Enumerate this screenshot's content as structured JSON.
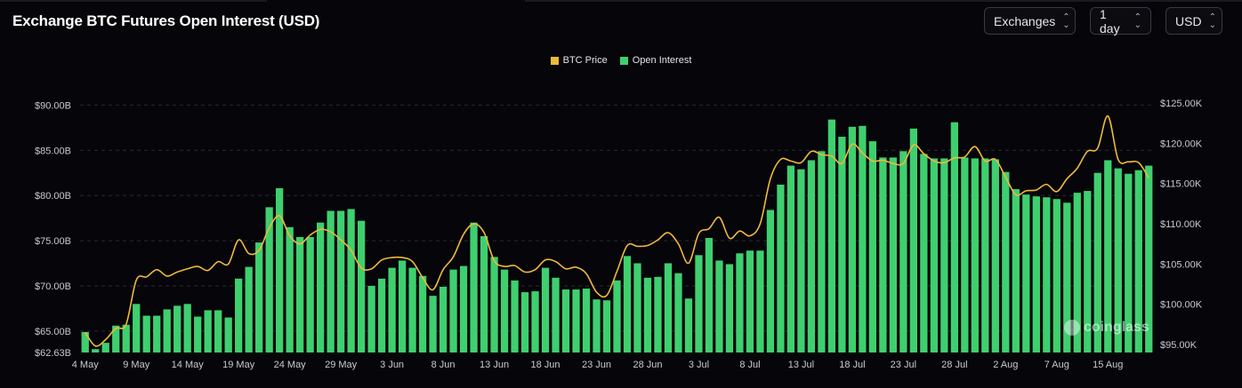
{
  "header": {
    "title": "Exchange BTC Futures Open Interest (USD)",
    "controls": [
      {
        "label": "Exchanges",
        "icon": "chevron-updown-icon"
      },
      {
        "label": "1 day",
        "icon": "chevron-updown-icon"
      },
      {
        "label": "USD",
        "icon": "chevron-updown-icon"
      }
    ]
  },
  "watermark": "coinglass",
  "colors": {
    "bar": "#3fcf6f",
    "line": "#f0b93a",
    "grid": "#2a2a33",
    "background": "#05050a"
  },
  "chart_data": {
    "type": "bar",
    "title": "Exchange BTC Futures Open Interest (USD)",
    "legend": [
      {
        "name": "BTC Price",
        "color": "#f0b93a",
        "kind": "line"
      },
      {
        "name": "Open Interest",
        "color": "#3fcf6f",
        "kind": "bar"
      }
    ],
    "legend_position": "top-center",
    "grid": true,
    "left_axis": {
      "ylim": [
        62.63,
        92.0
      ],
      "ticks": [
        62.63,
        65,
        70,
        75,
        80,
        85,
        90
      ],
      "tick_labels": [
        "$62.63B",
        "$65.00B",
        "$70.00B",
        "$75.00B",
        "$80.00B",
        "$85.00B",
        "$90.00B"
      ]
    },
    "right_axis": {
      "ylim": [
        94000,
        127000
      ],
      "ticks": [
        95000,
        100000,
        105000,
        110000,
        115000,
        120000,
        125000
      ],
      "tick_labels": [
        "$95.00K",
        "$100.00K",
        "$105.00K",
        "$110.00K",
        "$115.00K",
        "$120.00K",
        "$125.00K"
      ]
    },
    "x_tick_labels": [
      {
        "index": 0,
        "label": "4 May"
      },
      {
        "index": 5,
        "label": "9 May"
      },
      {
        "index": 10,
        "label": "14 May"
      },
      {
        "index": 15,
        "label": "19 May"
      },
      {
        "index": 20,
        "label": "24 May"
      },
      {
        "index": 25,
        "label": "29 May"
      },
      {
        "index": 30,
        "label": "3 Jun"
      },
      {
        "index": 35,
        "label": "8 Jun"
      },
      {
        "index": 40,
        "label": "13 Jun"
      },
      {
        "index": 45,
        "label": "18 Jun"
      },
      {
        "index": 50,
        "label": "23 Jun"
      },
      {
        "index": 55,
        "label": "28 Jun"
      },
      {
        "index": 60,
        "label": "3 Jul"
      },
      {
        "index": 65,
        "label": "8 Jul"
      },
      {
        "index": 70,
        "label": "13 Jul"
      },
      {
        "index": 75,
        "label": "18 Jul"
      },
      {
        "index": 80,
        "label": "23 Jul"
      },
      {
        "index": 85,
        "label": "28 Jul"
      },
      {
        "index": 90,
        "label": "2 Aug"
      },
      {
        "index": 95,
        "label": "7 Aug"
      },
      {
        "index": 100,
        "label": "15 Aug"
      }
    ],
    "series": [
      {
        "name": "Open Interest",
        "unit": "B USD",
        "axis": "left",
        "values": [
          64.9,
          63.0,
          63.7,
          65.6,
          65.7,
          68.0,
          66.7,
          66.7,
          67.4,
          67.8,
          68.0,
          66.6,
          67.3,
          67.3,
          66.5,
          70.8,
          72.1,
          74.8,
          78.7,
          80.8,
          76.5,
          75.4,
          75.4,
          77.0,
          78.3,
          78.3,
          78.5,
          77.2,
          70.0,
          70.8,
          72.0,
          72.8,
          72.0,
          71.1,
          68.9,
          69.9,
          71.8,
          72.2,
          77.0,
          75.5,
          73.2,
          71.8,
          70.6,
          69.3,
          69.4,
          72.0,
          70.9,
          69.6,
          69.6,
          69.7,
          68.5,
          68.4,
          70.6,
          73.3,
          72.5,
          70.9,
          71.0,
          72.5,
          71.4,
          68.6,
          73.4,
          75.3,
          72.8,
          72.4,
          73.6,
          73.9,
          73.9,
          78.4,
          81.2,
          83.3,
          82.9,
          83.9,
          84.9,
          88.4,
          86.5,
          87.6,
          87.7,
          86.0,
          84.2,
          84.2,
          84.9,
          87.4,
          84.6,
          84.1,
          84.1,
          88.1,
          84.2,
          84.1,
          84.1,
          84.0,
          82.6,
          80.7,
          80.1,
          79.9,
          79.8,
          79.6,
          79.2,
          80.3,
          80.5,
          82.5,
          83.9,
          83.0,
          82.4,
          82.8,
          83.3
        ]
      },
      {
        "name": "BTC Price",
        "unit": "USD",
        "axis": "right",
        "values": [
          96500,
          94800,
          95600,
          97000,
          97500,
          103000,
          103400,
          104300,
          103500,
          104000,
          104400,
          104700,
          104200,
          105300,
          105000,
          108000,
          106300,
          106700,
          109500,
          111000,
          108500,
          107500,
          108600,
          109300,
          109000,
          108000,
          106700,
          104500,
          104400,
          105500,
          105800,
          105800,
          105300,
          103300,
          101800,
          104300,
          105900,
          108700,
          110000,
          108900,
          105400,
          104700,
          104800,
          104000,
          104300,
          105500,
          105300,
          104400,
          104600,
          103800,
          101500,
          101100,
          104100,
          107300,
          107200,
          107300,
          108000,
          108900,
          107500,
          105100,
          108800,
          109400,
          110800,
          108200,
          109100,
          108500,
          110000,
          115600,
          118000,
          117800,
          117600,
          119000,
          118600,
          118400,
          117500,
          119900,
          118800,
          117800,
          117900,
          117500,
          117500,
          119800,
          118700,
          117800,
          117600,
          118200,
          118300,
          119600,
          117800,
          118000,
          115800,
          113600,
          114100,
          114200,
          114900,
          114000,
          115600,
          116900,
          119000,
          119400,
          123400,
          118000,
          117700,
          117600,
          115700
        ]
      }
    ]
  }
}
